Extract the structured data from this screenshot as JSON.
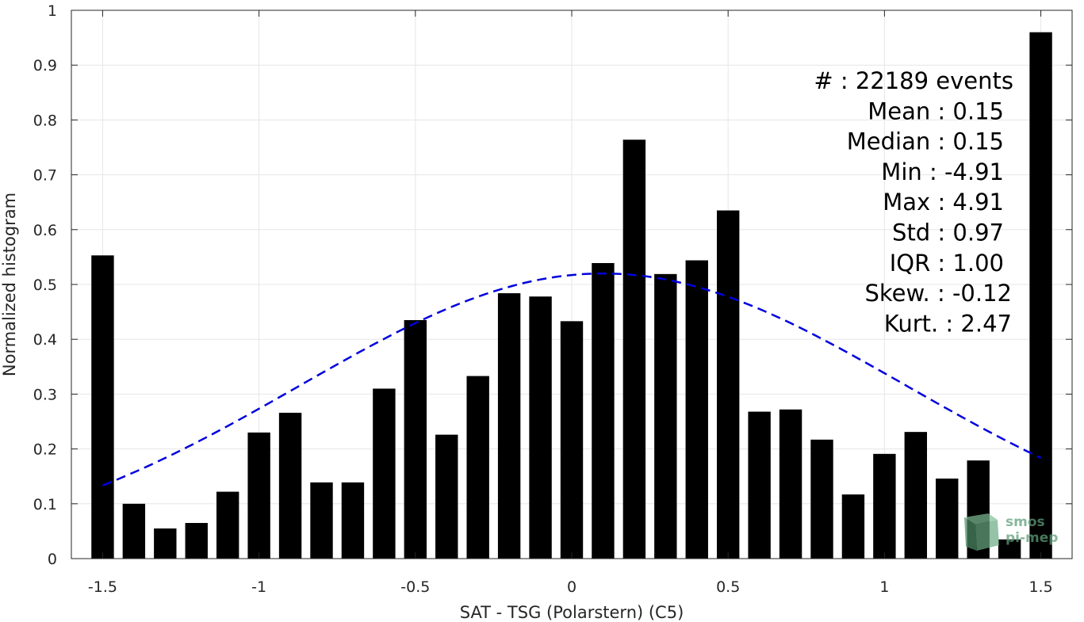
{
  "chart_data": {
    "type": "bar",
    "xlabel": "SAT - TSG (Polarstern) (C5)",
    "ylabel": "Normalized histogram",
    "xlim": [
      -1.6,
      1.6
    ],
    "ylim": [
      0,
      1
    ],
    "xticks": [
      -1.5,
      -1,
      -0.5,
      0,
      0.5,
      1,
      1.5
    ],
    "xtick_labels": [
      "-1.5",
      "-1",
      "-0.5",
      "0",
      "0.5",
      "1",
      "1.5"
    ],
    "yticks": [
      0,
      0.1,
      0.2,
      0.3,
      0.4,
      0.5,
      0.6,
      0.7,
      0.8,
      0.9,
      1
    ],
    "ytick_labels": [
      "0",
      "0.1",
      "0.2",
      "0.3",
      "0.4",
      "0.5",
      "0.6",
      "0.7",
      "0.8",
      "0.9",
      "1"
    ],
    "grid": true,
    "bar_color": "#000000",
    "bar_width": 0.072,
    "x": [
      -1.5,
      -1.4,
      -1.3,
      -1.2,
      -1.1,
      -1.0,
      -0.9,
      -0.8,
      -0.7,
      -0.6,
      -0.5,
      -0.4,
      -0.3,
      -0.2,
      -0.1,
      0.0,
      0.1,
      0.2,
      0.3,
      0.4,
      0.5,
      0.6,
      0.7,
      0.8,
      0.9,
      1.0,
      1.1,
      1.2,
      1.3,
      1.4,
      1.5
    ],
    "values": [
      0.553,
      0.1,
      0.055,
      0.065,
      0.122,
      0.23,
      0.266,
      0.139,
      0.139,
      0.31,
      0.435,
      0.226,
      0.333,
      0.484,
      0.478,
      0.433,
      0.539,
      0.764,
      0.519,
      0.544,
      0.635,
      0.268,
      0.272,
      0.217,
      0.117,
      0.191,
      0.231,
      0.146,
      0.179,
      0.035,
      0.96
    ],
    "fit": {
      "style": "dashed",
      "color": "#0000dd",
      "mean": 0.1,
      "sigma": 0.97,
      "peak": 0.52,
      "x_range": [
        -1.5,
        1.5
      ]
    },
    "annotations": [
      "#  : 22189 events",
      "Mean : 0.15",
      "Median : 0.15",
      "Min : -4.91",
      "Max : 4.91",
      "Std : 0.97",
      "IQR : 1.00",
      "Skew. : -0.12",
      "Kurt. : 2.47"
    ]
  },
  "logo": {
    "line1": "smos",
    "line2": "pi-mep",
    "color": "#5f9e7a"
  }
}
